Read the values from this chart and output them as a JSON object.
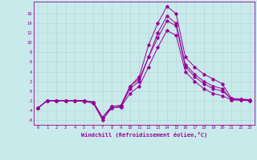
{
  "xlabel": "Windchill (Refroidissement éolien,°C)",
  "bg_color": "#c8eaea",
  "line_color": "#990099",
  "grid_color": "#b8d8d8",
  "xlim": [
    -0.5,
    23.5
  ],
  "ylim": [
    -7,
    18.5
  ],
  "yticks": [
    -6,
    -4,
    -2,
    0,
    2,
    4,
    6,
    8,
    10,
    12,
    14,
    16
  ],
  "xticks": [
    0,
    1,
    2,
    3,
    4,
    5,
    6,
    7,
    8,
    9,
    10,
    11,
    12,
    13,
    14,
    15,
    16,
    17,
    18,
    19,
    20,
    21,
    22,
    23
  ],
  "lines": [
    [
      -3.5,
      -2.0,
      -2.0,
      -2.0,
      -2.0,
      -2.0,
      -2.3,
      -5.5,
      -3.2,
      -3.0,
      1.0,
      3.0,
      9.5,
      14.0,
      17.5,
      16.0,
      7.0,
      5.0,
      3.5,
      2.5,
      1.5,
      -1.5,
      -1.7,
      -1.8
    ],
    [
      -3.5,
      -2.0,
      -2.0,
      -2.0,
      -2.0,
      -2.2,
      -2.5,
      -6.0,
      -3.5,
      -3.3,
      0.5,
      2.0,
      7.0,
      12.0,
      15.5,
      14.0,
      5.5,
      3.5,
      2.0,
      1.0,
      0.5,
      -1.8,
      -1.9,
      -2.0
    ],
    [
      -3.5,
      -2.0,
      -2.0,
      -2.0,
      -2.0,
      -2.0,
      -2.3,
      -5.5,
      -3.2,
      -3.0,
      1.0,
      2.5,
      7.0,
      11.0,
      14.5,
      13.5,
      5.0,
      3.0,
      1.5,
      0.5,
      0.0,
      -1.6,
      -1.7,
      -1.8
    ],
    [
      -3.5,
      -2.0,
      -2.0,
      -2.0,
      -2.0,
      -2.0,
      -2.3,
      -5.5,
      -3.5,
      -3.3,
      -0.5,
      1.0,
      5.0,
      9.0,
      12.5,
      11.5,
      4.0,
      2.0,
      0.5,
      -0.5,
      -1.0,
      -1.8,
      -1.9,
      -2.0
    ]
  ],
  "tick_fontsize": 4.0,
  "xlabel_fontsize": 5.0,
  "marker_size": 1.8,
  "line_width": 0.7
}
